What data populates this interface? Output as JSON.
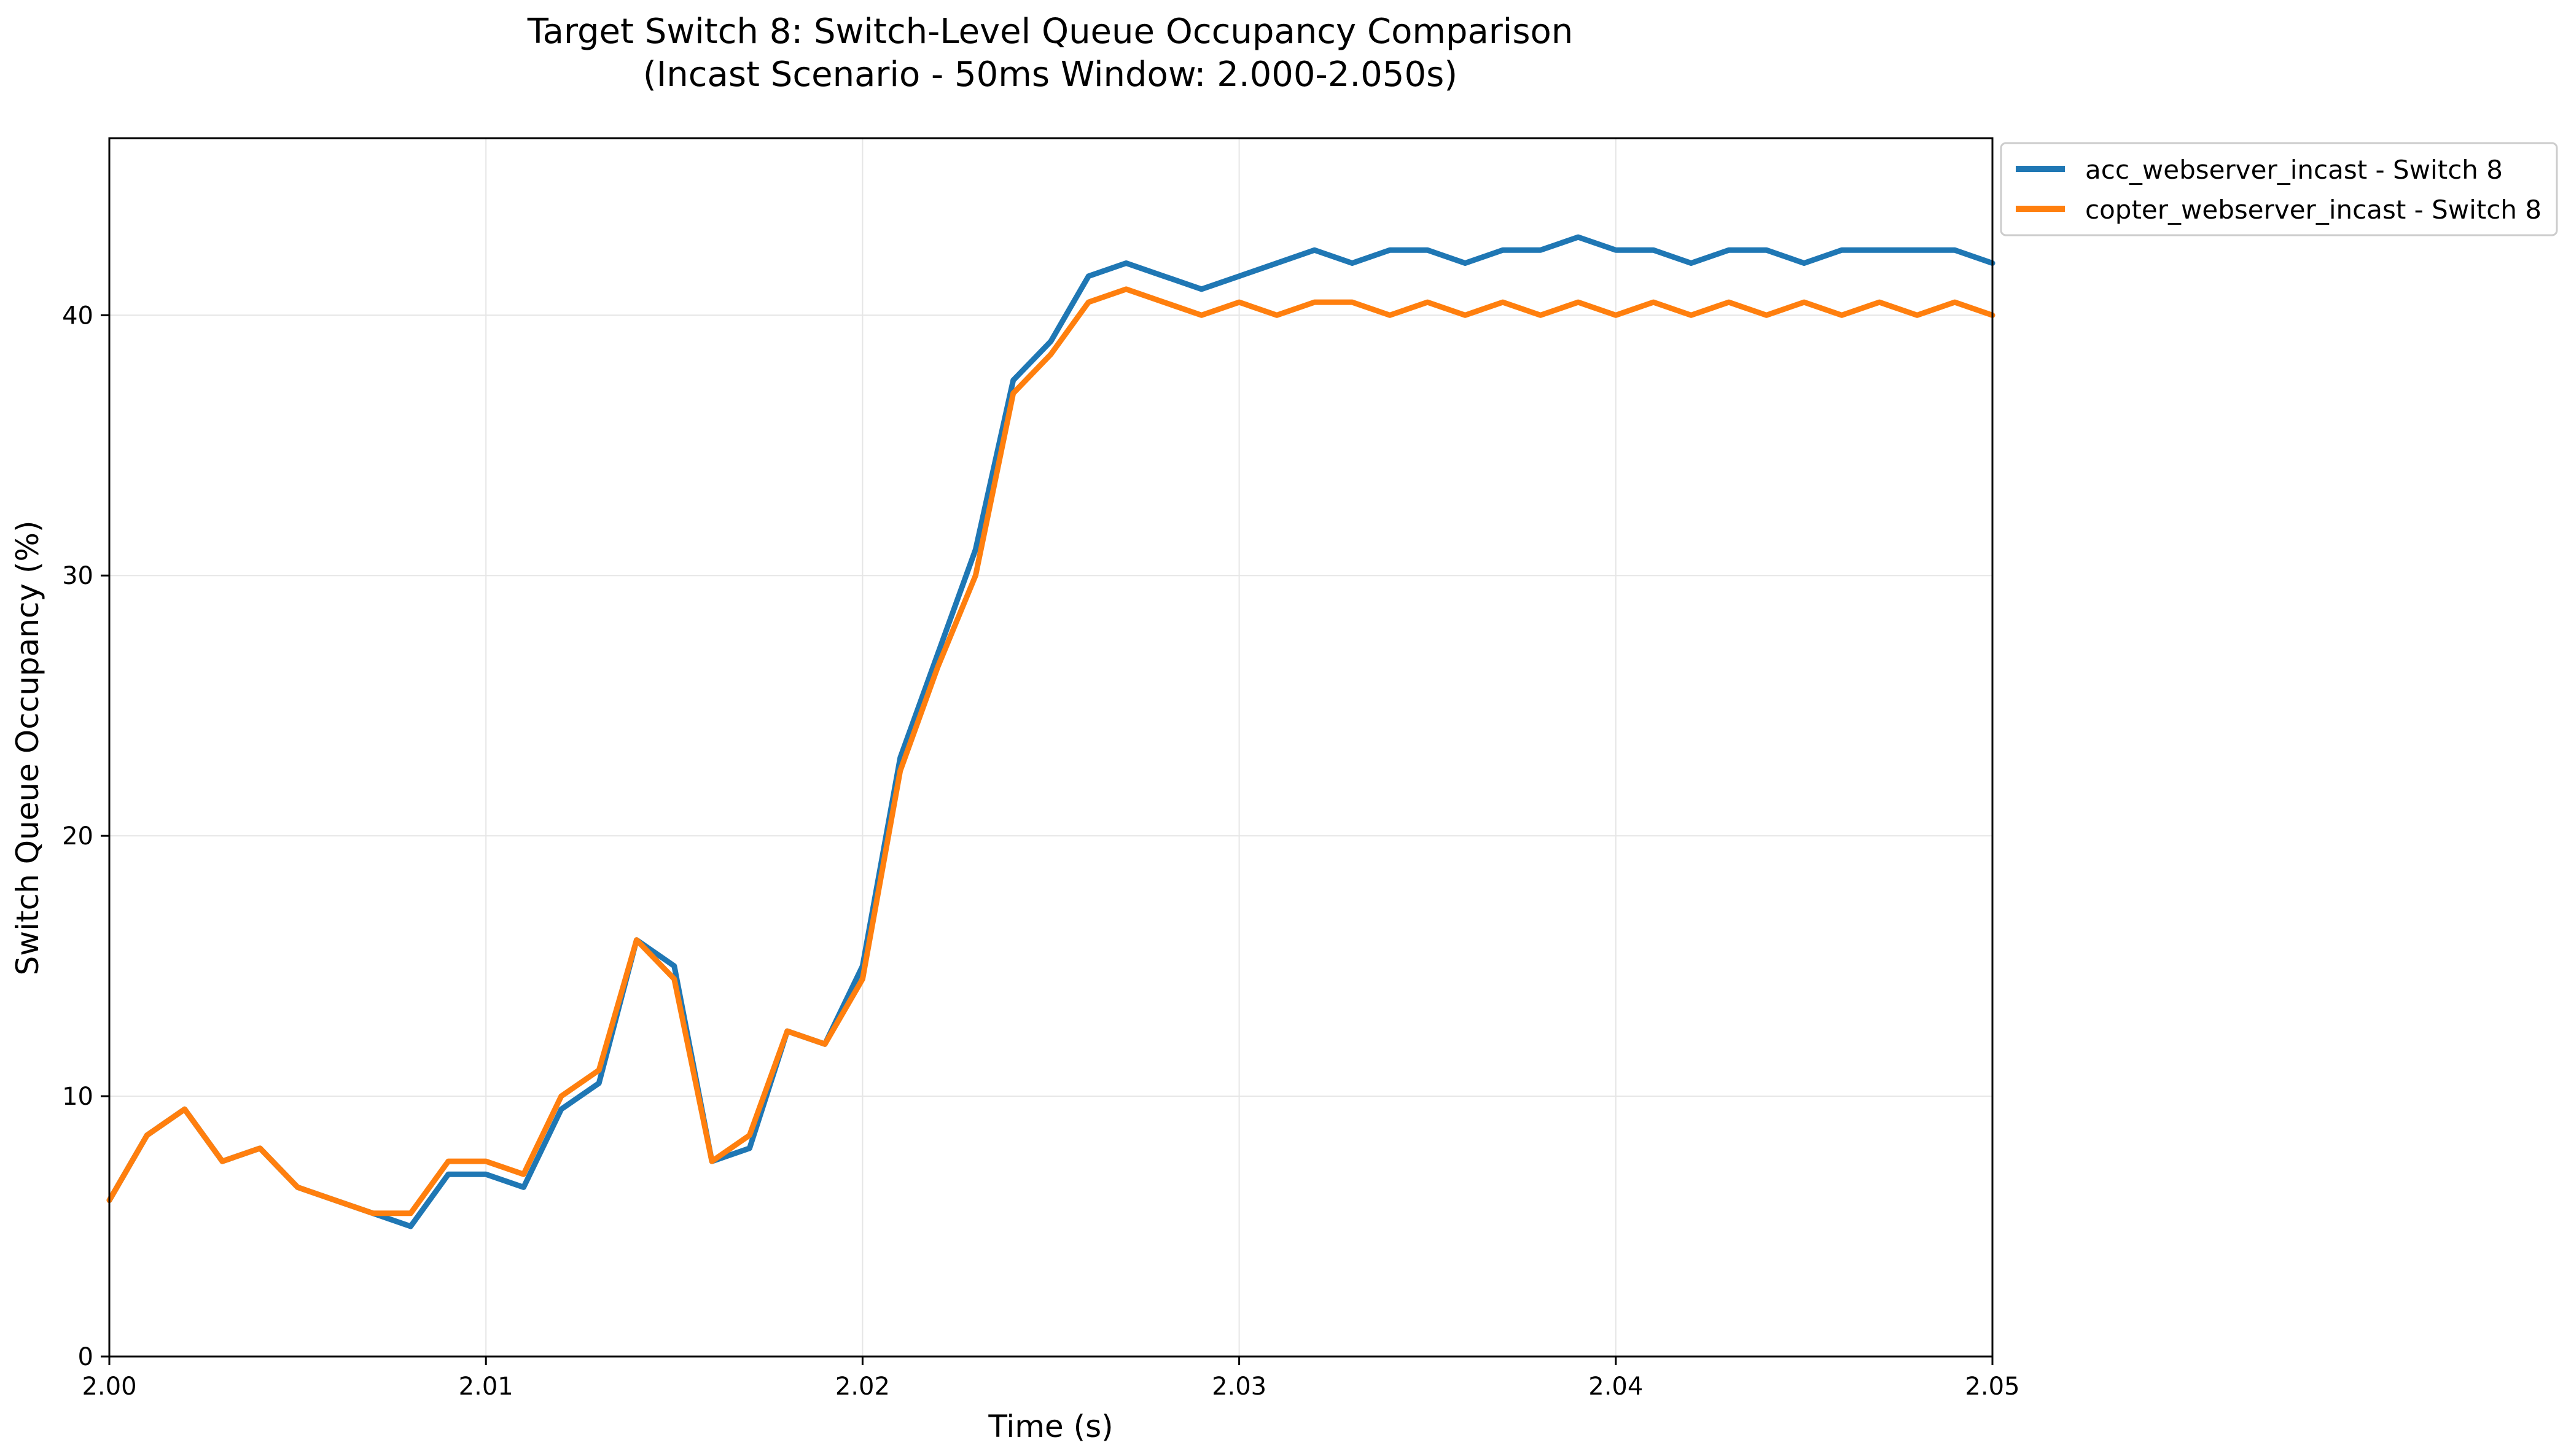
{
  "chart_data": {
    "type": "line",
    "title": "Target Switch 8: Switch-Level Queue Occupancy Comparison",
    "subtitle": "(Incast Scenario - 50ms Window: 2.000-2.050s)",
    "xlabel": "Time (s)",
    "ylabel": "Switch Queue Occupancy (%)",
    "xlim": [
      2.0,
      2.05
    ],
    "ylim": [
      0,
      46.8
    ],
    "xticks": [
      2.0,
      2.01,
      2.02,
      2.03,
      2.04,
      2.05
    ],
    "xtick_labels": [
      "2.00",
      "2.01",
      "2.02",
      "2.03",
      "2.04",
      "2.05"
    ],
    "yticks": [
      0,
      10,
      20,
      30,
      40
    ],
    "ytick_labels": [
      "0",
      "10",
      "20",
      "30",
      "40"
    ],
    "grid": true,
    "legend_position": "outside top-right",
    "x": [
      2.0,
      2.001,
      2.002,
      2.003,
      2.004,
      2.005,
      2.006,
      2.007,
      2.008,
      2.009,
      2.01,
      2.011,
      2.012,
      2.013,
      2.014,
      2.015,
      2.016,
      2.017,
      2.018,
      2.019,
      2.02,
      2.021,
      2.022,
      2.023,
      2.024,
      2.025,
      2.026,
      2.027,
      2.028,
      2.029,
      2.03,
      2.031,
      2.032,
      2.033,
      2.034,
      2.035,
      2.036,
      2.037,
      2.038,
      2.039,
      2.04,
      2.041,
      2.042,
      2.043,
      2.044,
      2.045,
      2.046,
      2.047,
      2.048,
      2.049,
      2.05
    ],
    "series": [
      {
        "name": "acc_webserver_incast - Switch 8",
        "color": "#1f77b4",
        "values": [
          6.0,
          8.5,
          9.5,
          7.5,
          8.0,
          6.5,
          6.0,
          5.5,
          5.0,
          7.0,
          7.0,
          6.5,
          9.5,
          10.5,
          16.0,
          15.0,
          7.5,
          8.0,
          12.5,
          12.0,
          15.0,
          23.0,
          27.0,
          31.0,
          37.5,
          39.0,
          41.5,
          42.0,
          41.5,
          41.0,
          41.5,
          42.0,
          42.5,
          42.0,
          42.5,
          42.5,
          42.0,
          42.5,
          42.5,
          43.0,
          42.5,
          42.5,
          42.0,
          42.5,
          42.5,
          42.0,
          42.5,
          42.5,
          42.5,
          42.5,
          42.0
        ]
      },
      {
        "name": "copter_webserver_incast - Switch 8",
        "color": "#ff7f0e",
        "values": [
          6.0,
          8.5,
          9.5,
          7.5,
          8.0,
          6.5,
          6.0,
          5.5,
          5.5,
          7.5,
          7.5,
          7.0,
          10.0,
          11.0,
          16.0,
          14.5,
          7.5,
          8.5,
          12.5,
          12.0,
          14.5,
          22.5,
          26.5,
          30.0,
          37.0,
          38.5,
          40.5,
          41.0,
          40.5,
          40.0,
          40.5,
          40.0,
          40.5,
          40.5,
          40.0,
          40.5,
          40.0,
          40.5,
          40.0,
          40.5,
          40.0,
          40.5,
          40.0,
          40.5,
          40.0,
          40.5,
          40.0,
          40.5,
          40.0,
          40.5,
          40.0
        ]
      }
    ]
  }
}
